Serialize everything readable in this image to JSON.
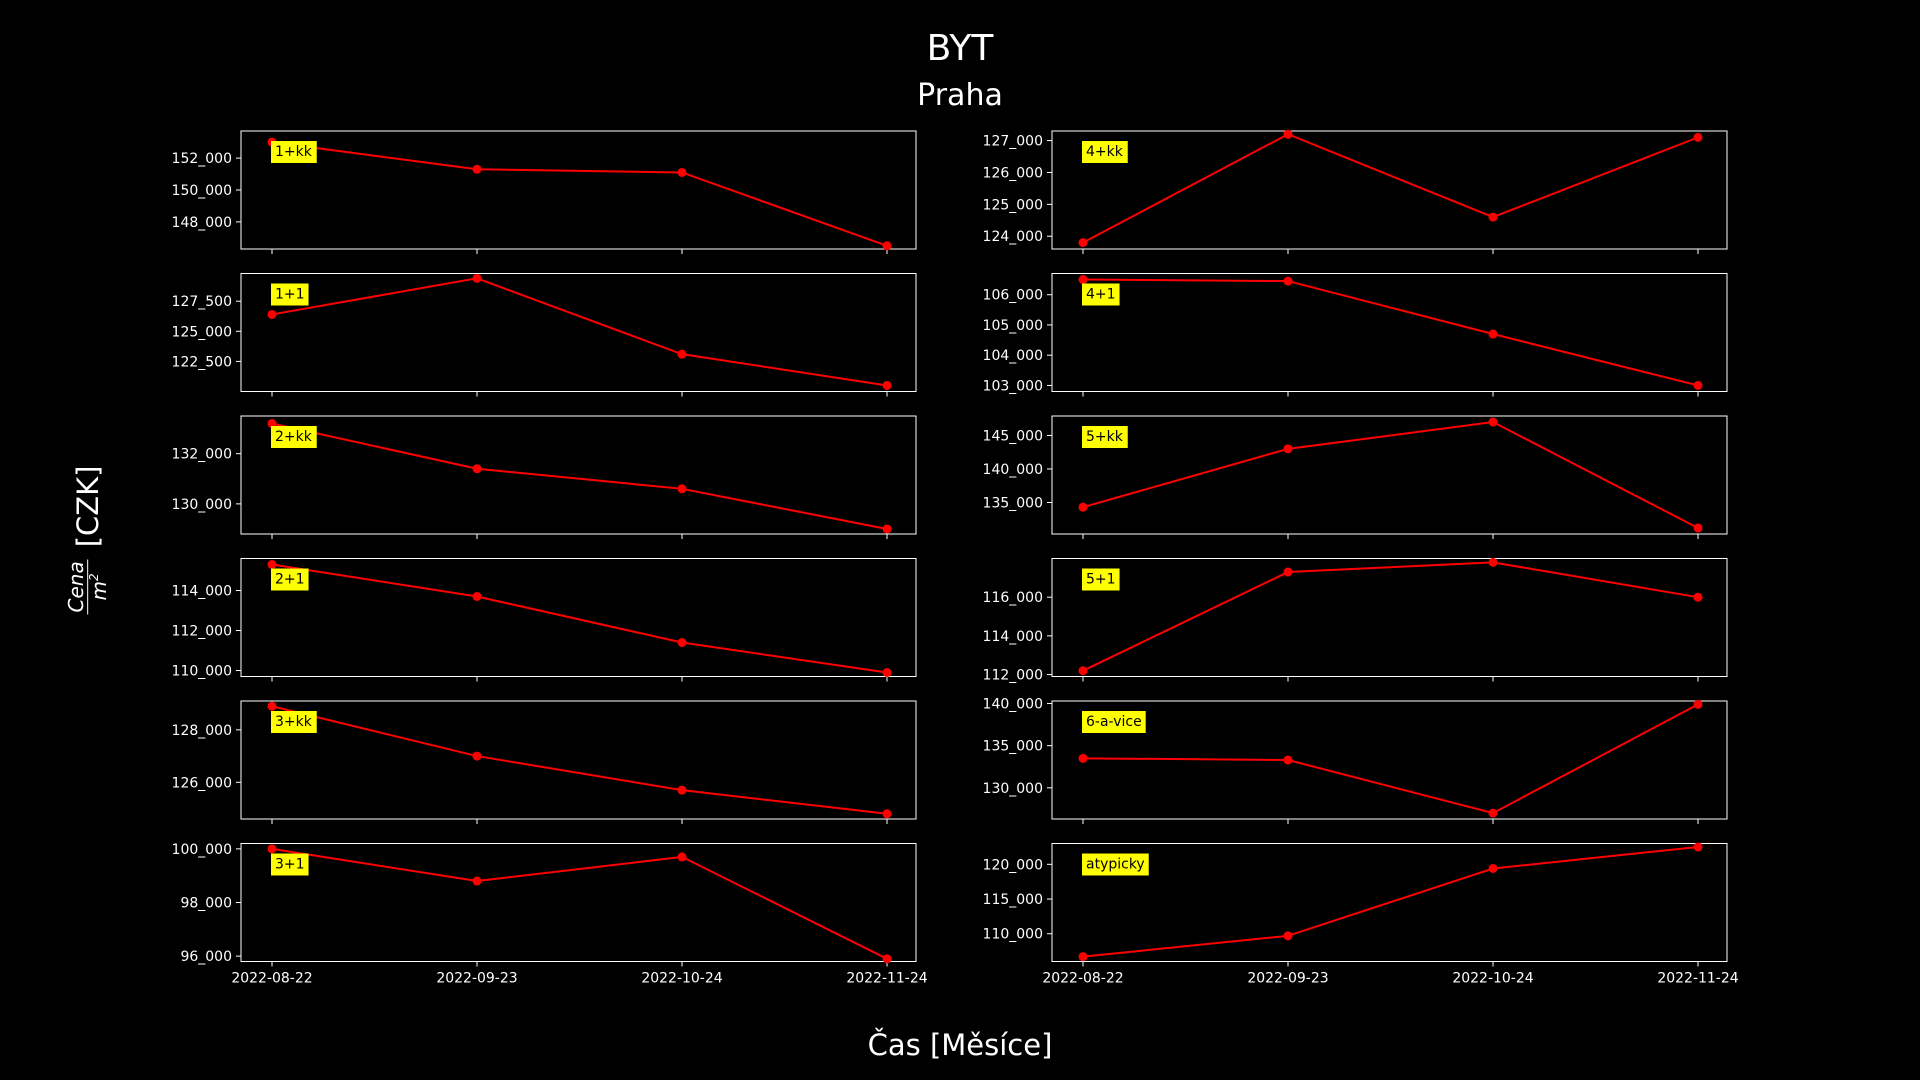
{
  "figure": {
    "title": "BYT",
    "subtitle": "Praha",
    "xlabel": "Čas [Měsíce]",
    "ylabel_numerator": "Cena",
    "ylabel_denominator": "m",
    "ylabel_exponent": "2",
    "ylabel_unit": "[CZK]"
  },
  "colors": {
    "background": "#000000",
    "line": "#ff0000",
    "label_box": "#ffff00",
    "axes": "#ffffff"
  },
  "chart_data": [
    {
      "type": "line",
      "label": "1+kk",
      "x": [
        "2022-08-22",
        "2022-09-23",
        "2022-10-24",
        "2022-11-24"
      ],
      "y": [
        153000,
        151300,
        151100,
        146500
      ],
      "yticks": [
        148000,
        150000,
        152000
      ],
      "ylim": [
        146300,
        153700
      ]
    },
    {
      "type": "line",
      "label": "4+kk",
      "x": [
        "2022-08-22",
        "2022-09-23",
        "2022-10-24",
        "2022-11-24"
      ],
      "y": [
        123800,
        127200,
        124600,
        127100
      ],
      "yticks": [
        124000,
        125000,
        126000,
        127000
      ],
      "ylim": [
        123600,
        127300
      ]
    },
    {
      "type": "line",
      "label": "1+1",
      "x": [
        "2022-08-22",
        "2022-09-23",
        "2022-10-24",
        "2022-11-24"
      ],
      "y": [
        126400,
        129400,
        123100,
        120500
      ],
      "yticks": [
        122500,
        125000,
        127500
      ],
      "ylim": [
        120000,
        129800
      ]
    },
    {
      "type": "line",
      "label": "4+1",
      "x": [
        "2022-08-22",
        "2022-09-23",
        "2022-10-24",
        "2022-11-24"
      ],
      "y": [
        106500,
        106450,
        104700,
        103000
      ],
      "yticks": [
        103000,
        104000,
        105000,
        106000
      ],
      "ylim": [
        102800,
        106700
      ]
    },
    {
      "type": "line",
      "label": "2+kk",
      "x": [
        "2022-08-22",
        "2022-09-23",
        "2022-10-24",
        "2022-11-24"
      ],
      "y": [
        133200,
        131400,
        130600,
        129000
      ],
      "yticks": [
        130000,
        132000
      ],
      "ylim": [
        128800,
        133500
      ]
    },
    {
      "type": "line",
      "label": "5+kk",
      "x": [
        "2022-08-22",
        "2022-09-23",
        "2022-10-24",
        "2022-11-24"
      ],
      "y": [
        134300,
        143000,
        147000,
        131200
      ],
      "yticks": [
        135000,
        140000,
        145000
      ],
      "ylim": [
        130300,
        147900
      ]
    },
    {
      "type": "line",
      "label": "2+1",
      "x": [
        "2022-08-22",
        "2022-09-23",
        "2022-10-24",
        "2022-11-24"
      ],
      "y": [
        115300,
        113700,
        111400,
        109900
      ],
      "yticks": [
        110000,
        112000,
        114000
      ],
      "ylim": [
        109700,
        115600
      ]
    },
    {
      "type": "line",
      "label": "5+1",
      "x": [
        "2022-08-22",
        "2022-09-23",
        "2022-10-24",
        "2022-11-24"
      ],
      "y": [
        112200,
        117300,
        117800,
        116000
      ],
      "yticks": [
        112000,
        114000,
        116000
      ],
      "ylim": [
        111900,
        118000
      ]
    },
    {
      "type": "line",
      "label": "3+kk",
      "x": [
        "2022-08-22",
        "2022-09-23",
        "2022-10-24",
        "2022-11-24"
      ],
      "y": [
        128900,
        127000,
        125700,
        124800
      ],
      "yticks": [
        126000,
        128000
      ],
      "ylim": [
        124600,
        129100
      ]
    },
    {
      "type": "line",
      "label": "6-a-vice",
      "x": [
        "2022-08-22",
        "2022-09-23",
        "2022-10-24",
        "2022-11-24"
      ],
      "y": [
        133500,
        133300,
        127000,
        139900
      ],
      "yticks": [
        130000,
        135000,
        140000
      ],
      "ylim": [
        126300,
        140300
      ]
    },
    {
      "type": "line",
      "label": "3+1",
      "x": [
        "2022-08-22",
        "2022-09-23",
        "2022-10-24",
        "2022-11-24"
      ],
      "y": [
        100000,
        98800,
        99700,
        95900
      ],
      "yticks": [
        96000,
        98000,
        100000
      ],
      "ylim": [
        95800,
        100200
      ]
    },
    {
      "type": "line",
      "label": "atypicky",
      "x": [
        "2022-08-22",
        "2022-09-23",
        "2022-10-24",
        "2022-11-24"
      ],
      "y": [
        106700,
        109700,
        119400,
        122500
      ],
      "yticks": [
        110000,
        115000,
        120000
      ],
      "ylim": [
        106000,
        123000
      ]
    }
  ]
}
